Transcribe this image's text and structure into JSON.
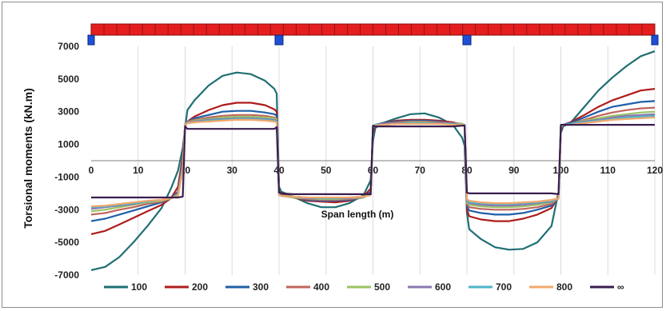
{
  "chart_data": {
    "type": "line",
    "title": "",
    "ylabel": "Torsional moments (kN.m)",
    "xlabel": "Span length (m)",
    "xlim": [
      0,
      120
    ],
    "ylim": [
      -7000,
      7000
    ],
    "xticks": [
      0,
      10,
      20,
      30,
      40,
      50,
      60,
      70,
      80,
      90,
      100,
      110,
      120
    ],
    "yticks": [
      7000,
      5000,
      3000,
      1000,
      -1000,
      -3000,
      -5000,
      -7000
    ],
    "grid": "vertical",
    "legend_position": "bottom",
    "supports_x": [
      0,
      40,
      80,
      120
    ],
    "x": [
      0,
      3,
      6,
      9,
      12,
      15,
      17,
      18.5,
      19.5,
      20,
      20.5,
      22,
      25,
      28,
      31,
      34,
      37,
      39,
      39.5,
      40,
      40.5,
      43,
      46,
      49,
      52,
      55,
      58,
      59.5,
      60,
      60.5,
      62,
      65,
      68,
      71,
      74,
      77,
      79,
      79.5,
      80,
      80.5,
      83,
      86,
      89,
      92,
      95,
      98,
      99.5,
      100,
      100.5,
      102,
      105,
      108,
      111,
      114,
      117,
      120
    ],
    "series": [
      {
        "name": "100",
        "color": "#1f6f73",
        "values": [
          -6700,
          -6500,
          -5900,
          -5000,
          -4000,
          -2900,
          -1700,
          -600,
          800,
          2000,
          3100,
          3700,
          4600,
          5200,
          5400,
          5300,
          4900,
          4400,
          4100,
          -1600,
          -1900,
          -2200,
          -2600,
          -2850,
          -2850,
          -2600,
          -2100,
          -1200,
          1200,
          2000,
          2300,
          2600,
          2850,
          2900,
          2650,
          2200,
          1400,
          900,
          -3200,
          -4200,
          -4800,
          -5300,
          -5450,
          -5400,
          -5000,
          -4000,
          -1900,
          1700,
          2100,
          2300,
          3300,
          4300,
          5100,
          5800,
          6400,
          6700
        ]
      },
      {
        "name": "200",
        "color": "#b01c1c",
        "values": [
          -4500,
          -4300,
          -3900,
          -3500,
          -3100,
          -2700,
          -2300,
          -1600,
          300,
          2100,
          2400,
          2700,
          3100,
          3400,
          3550,
          3550,
          3400,
          3150,
          3000,
          -1900,
          -2000,
          -2250,
          -2450,
          -2500,
          -2550,
          -2450,
          -2200,
          -1700,
          1700,
          2150,
          2300,
          2450,
          2500,
          2500,
          2450,
          2350,
          2200,
          2150,
          -3000,
          -3400,
          -3600,
          -3700,
          -3700,
          -3550,
          -3300,
          -2900,
          -2200,
          1900,
          2200,
          2350,
          2800,
          3300,
          3700,
          4000,
          4300,
          4400
        ]
      },
      {
        "name": "300",
        "color": "#1f5fa8",
        "values": [
          -3700,
          -3550,
          -3300,
          -3050,
          -2800,
          -2550,
          -2300,
          -1900,
          0,
          2200,
          2400,
          2600,
          2800,
          3000,
          3050,
          3050,
          2950,
          2850,
          2750,
          -2000,
          -2100,
          -2250,
          -2400,
          -2450,
          -2450,
          -2400,
          -2250,
          -1900,
          1900,
          2200,
          2300,
          2400,
          2450,
          2450,
          2400,
          2300,
          2250,
          2200,
          -2800,
          -3050,
          -3200,
          -3300,
          -3300,
          -3200,
          -3000,
          -2750,
          -2300,
          2000,
          2200,
          2300,
          2650,
          3000,
          3300,
          3450,
          3600,
          3650
        ]
      },
      {
        "name": "400",
        "color": "#c0645c",
        "values": [
          -3300,
          -3200,
          -3000,
          -2850,
          -2650,
          -2500,
          -2300,
          -2000,
          -200,
          2250,
          2400,
          2500,
          2650,
          2750,
          2800,
          2800,
          2750,
          2650,
          2600,
          -2050,
          -2150,
          -2250,
          -2350,
          -2400,
          -2400,
          -2350,
          -2250,
          -2000,
          2000,
          2200,
          2250,
          2350,
          2400,
          2400,
          2350,
          2300,
          2250,
          2200,
          -2650,
          -2850,
          -2950,
          -3000,
          -3000,
          -2950,
          -2850,
          -2650,
          -2300,
          2050,
          2200,
          2250,
          2500,
          2750,
          2950,
          3100,
          3200,
          3250
        ]
      },
      {
        "name": "500",
        "color": "#9bc363",
        "values": [
          -3100,
          -3000,
          -2850,
          -2700,
          -2550,
          -2450,
          -2300,
          -2050,
          -300,
          2250,
          2350,
          2450,
          2550,
          2650,
          2700,
          2700,
          2650,
          2600,
          2500,
          -2100,
          -2150,
          -2250,
          -2300,
          -2350,
          -2350,
          -2300,
          -2250,
          -2050,
          2050,
          2200,
          2250,
          2300,
          2350,
          2350,
          2300,
          2250,
          2250,
          2200,
          -2550,
          -2700,
          -2800,
          -2850,
          -2850,
          -2800,
          -2700,
          -2550,
          -2300,
          2050,
          2200,
          2250,
          2450,
          2600,
          2750,
          2850,
          2950,
          3000
        ]
      },
      {
        "name": "600",
        "color": "#8a78b0",
        "values": [
          -2950,
          -2850,
          -2750,
          -2650,
          -2500,
          -2400,
          -2300,
          -2100,
          -400,
          2250,
          2350,
          2400,
          2500,
          2550,
          2600,
          2600,
          2550,
          2500,
          2450,
          -2100,
          -2150,
          -2200,
          -2300,
          -2300,
          -2300,
          -2300,
          -2200,
          -2100,
          2100,
          2200,
          2250,
          2300,
          2300,
          2300,
          2300,
          2250,
          2200,
          2200,
          -2450,
          -2600,
          -2700,
          -2750,
          -2750,
          -2700,
          -2600,
          -2500,
          -2300,
          2100,
          2200,
          2250,
          2400,
          2500,
          2650,
          2750,
          2800,
          2850
        ]
      },
      {
        "name": "700",
        "color": "#4fb3c9",
        "values": [
          -2850,
          -2800,
          -2700,
          -2600,
          -2500,
          -2400,
          -2300,
          -2100,
          -500,
          2250,
          2300,
          2350,
          2450,
          2500,
          2550,
          2550,
          2500,
          2450,
          2400,
          -2100,
          -2150,
          -2200,
          -2250,
          -2300,
          -2300,
          -2250,
          -2200,
          -2100,
          2100,
          2200,
          2200,
          2250,
          2300,
          2300,
          2250,
          2250,
          2200,
          2200,
          -2400,
          -2550,
          -2600,
          -2650,
          -2650,
          -2600,
          -2550,
          -2450,
          -2300,
          2100,
          2200,
          2250,
          2350,
          2450,
          2550,
          2650,
          2700,
          2750
        ]
      },
      {
        "name": "800",
        "color": "#f2a86b",
        "values": [
          -2800,
          -2750,
          -2650,
          -2550,
          -2450,
          -2400,
          -2300,
          -2150,
          -600,
          2200,
          2300,
          2350,
          2400,
          2450,
          2500,
          2500,
          2450,
          2400,
          2350,
          -2100,
          -2150,
          -2200,
          -2250,
          -2250,
          -2250,
          -2250,
          -2200,
          -2100,
          2100,
          2150,
          2200,
          2250,
          2250,
          2250,
          2250,
          2200,
          2200,
          2150,
          -2350,
          -2450,
          -2550,
          -2600,
          -2600,
          -2550,
          -2500,
          -2400,
          -2300,
          2100,
          2200,
          2200,
          2300,
          2400,
          2500,
          2550,
          2600,
          2650
        ]
      },
      {
        "name": "∞",
        "color": "#3a1e4f",
        "values": [
          -2250,
          -2250,
          -2250,
          -2250,
          -2250,
          -2250,
          -2250,
          -2250,
          -2200,
          2100,
          1950,
          1950,
          1950,
          1950,
          1950,
          1950,
          1950,
          1950,
          2050,
          -1950,
          -2000,
          -2050,
          -2050,
          -2050,
          -2050,
          -2050,
          -2050,
          -2050,
          2150,
          2100,
          2100,
          2100,
          2100,
          2100,
          2100,
          2100,
          2150,
          2150,
          -1950,
          -2000,
          -2000,
          -2000,
          -2000,
          -2000,
          -2000,
          -2000,
          -2050,
          2200,
          2200,
          2200,
          2200,
          2200,
          2200,
          2200,
          2200,
          2200
        ]
      }
    ]
  }
}
